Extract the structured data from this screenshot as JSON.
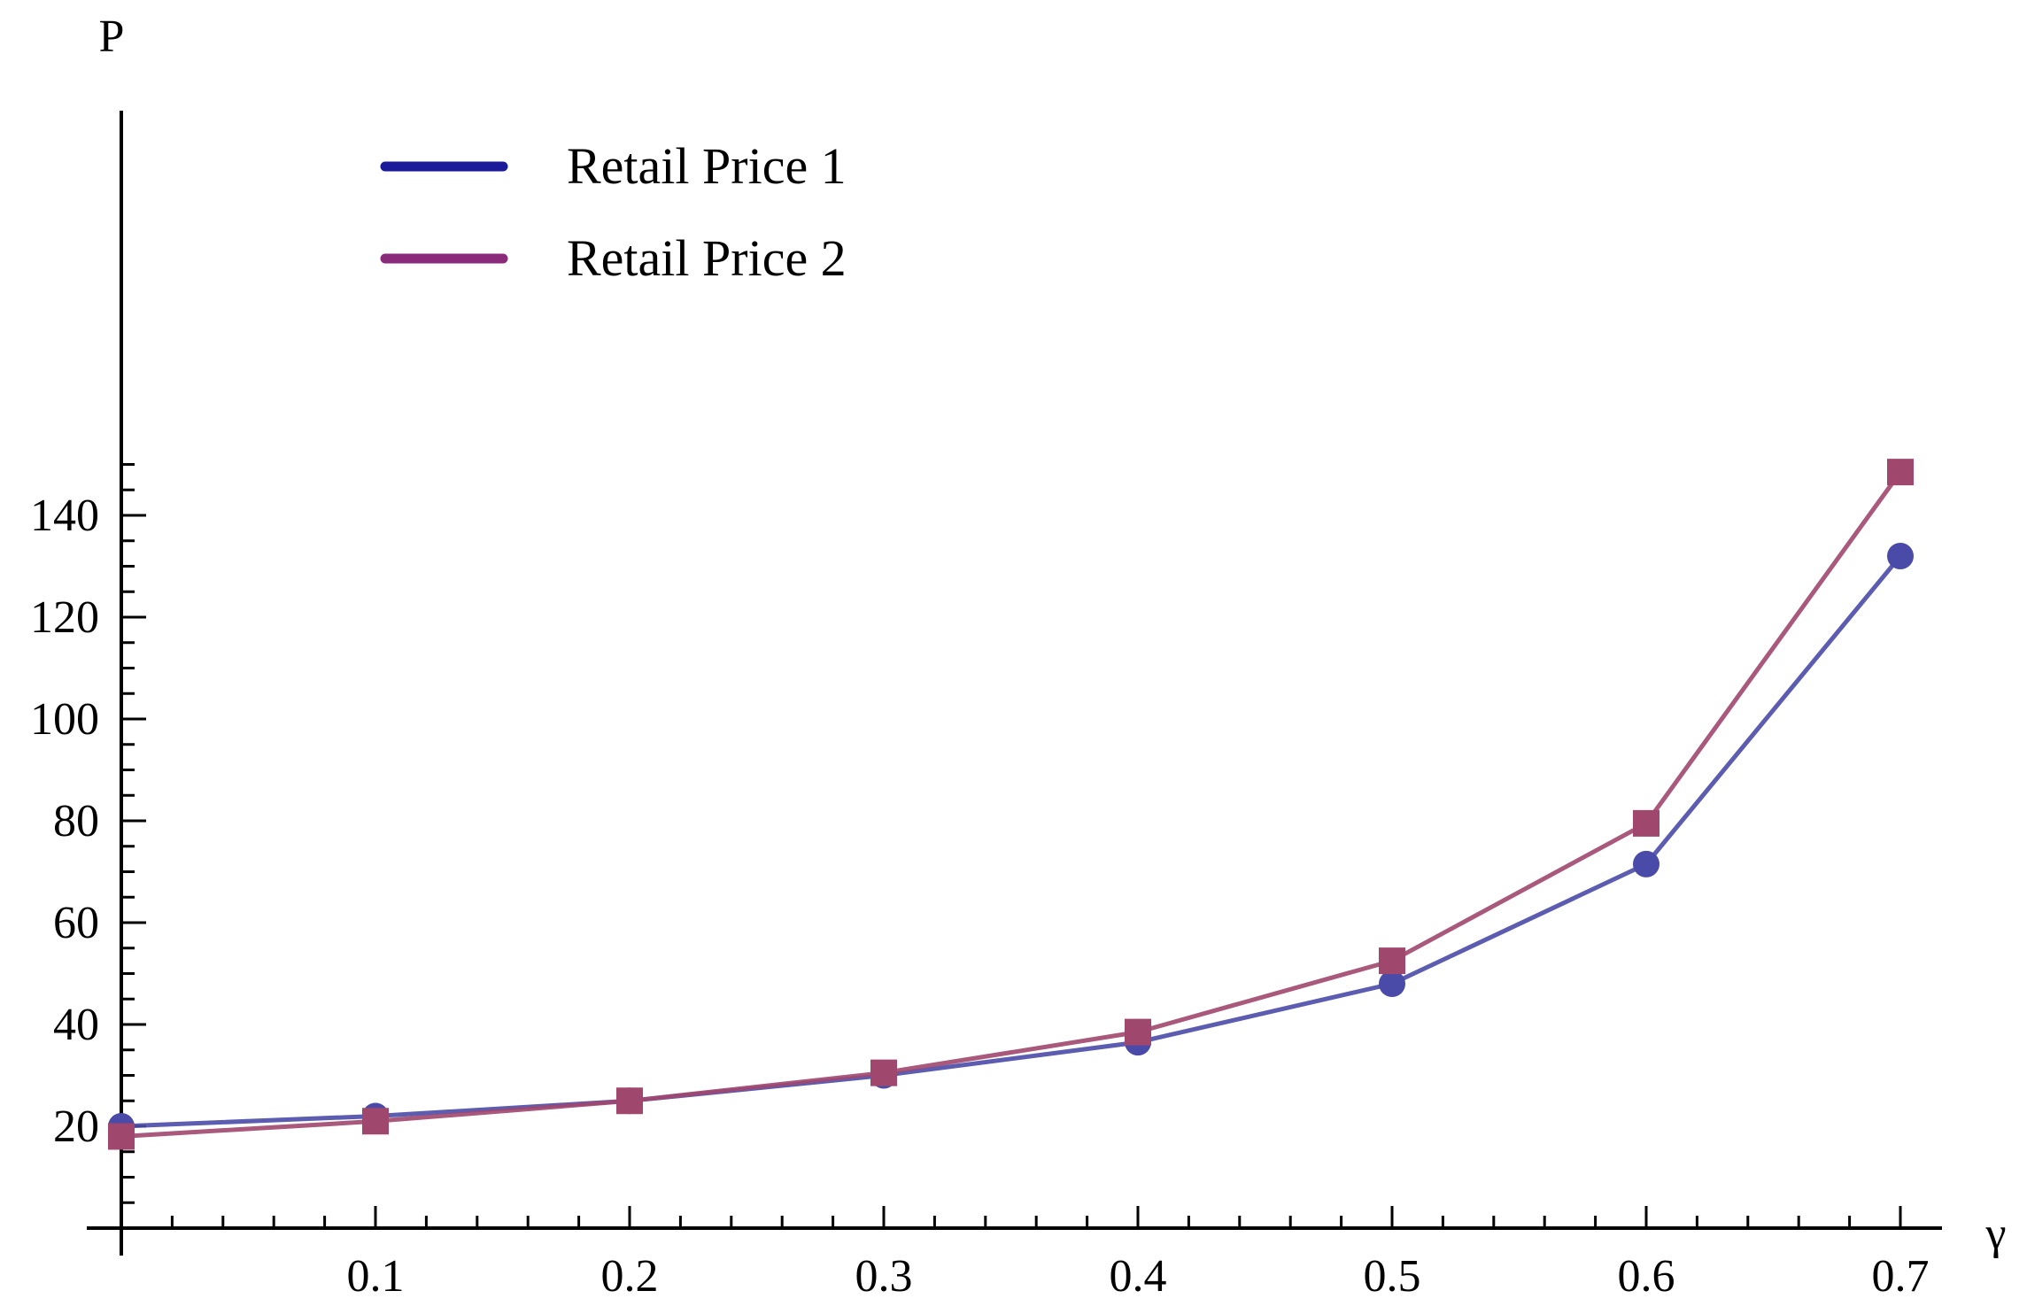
{
  "chart_data": {
    "type": "line",
    "xlabel": "γ",
    "ylabel": "P",
    "x": [
      0.0,
      0.1,
      0.2,
      0.3,
      0.4,
      0.5,
      0.6,
      0.7
    ],
    "xlim": [
      0,
      0.7
    ],
    "ylim": [
      0,
      150
    ],
    "xticks": [
      0.1,
      0.2,
      0.3,
      0.4,
      0.5,
      0.6,
      0.7
    ],
    "xtick_labels": [
      "0.1",
      "0.2",
      "0.3",
      "0.4",
      "0.5",
      "0.6",
      "0.7"
    ],
    "yticks": [
      20,
      40,
      60,
      80,
      100,
      120,
      140
    ],
    "ytick_labels": [
      "20",
      "40",
      "60",
      "80",
      "100",
      "120",
      "140"
    ],
    "grid": false,
    "legend_position": "top-left",
    "series": [
      {
        "name": "Retail Price 1",
        "color": "#4a4aa8",
        "legend_color": "#1a1a9a",
        "marker": "circle",
        "values": [
          20,
          22,
          25,
          30,
          36.5,
          48,
          71.5,
          132
        ]
      },
      {
        "name": "Retail Price 2",
        "color": "#a0476e",
        "legend_color": "#8a2a7a",
        "marker": "square",
        "values": [
          18,
          21,
          25,
          30.5,
          38.5,
          52.5,
          79.5,
          148.5
        ]
      }
    ]
  }
}
